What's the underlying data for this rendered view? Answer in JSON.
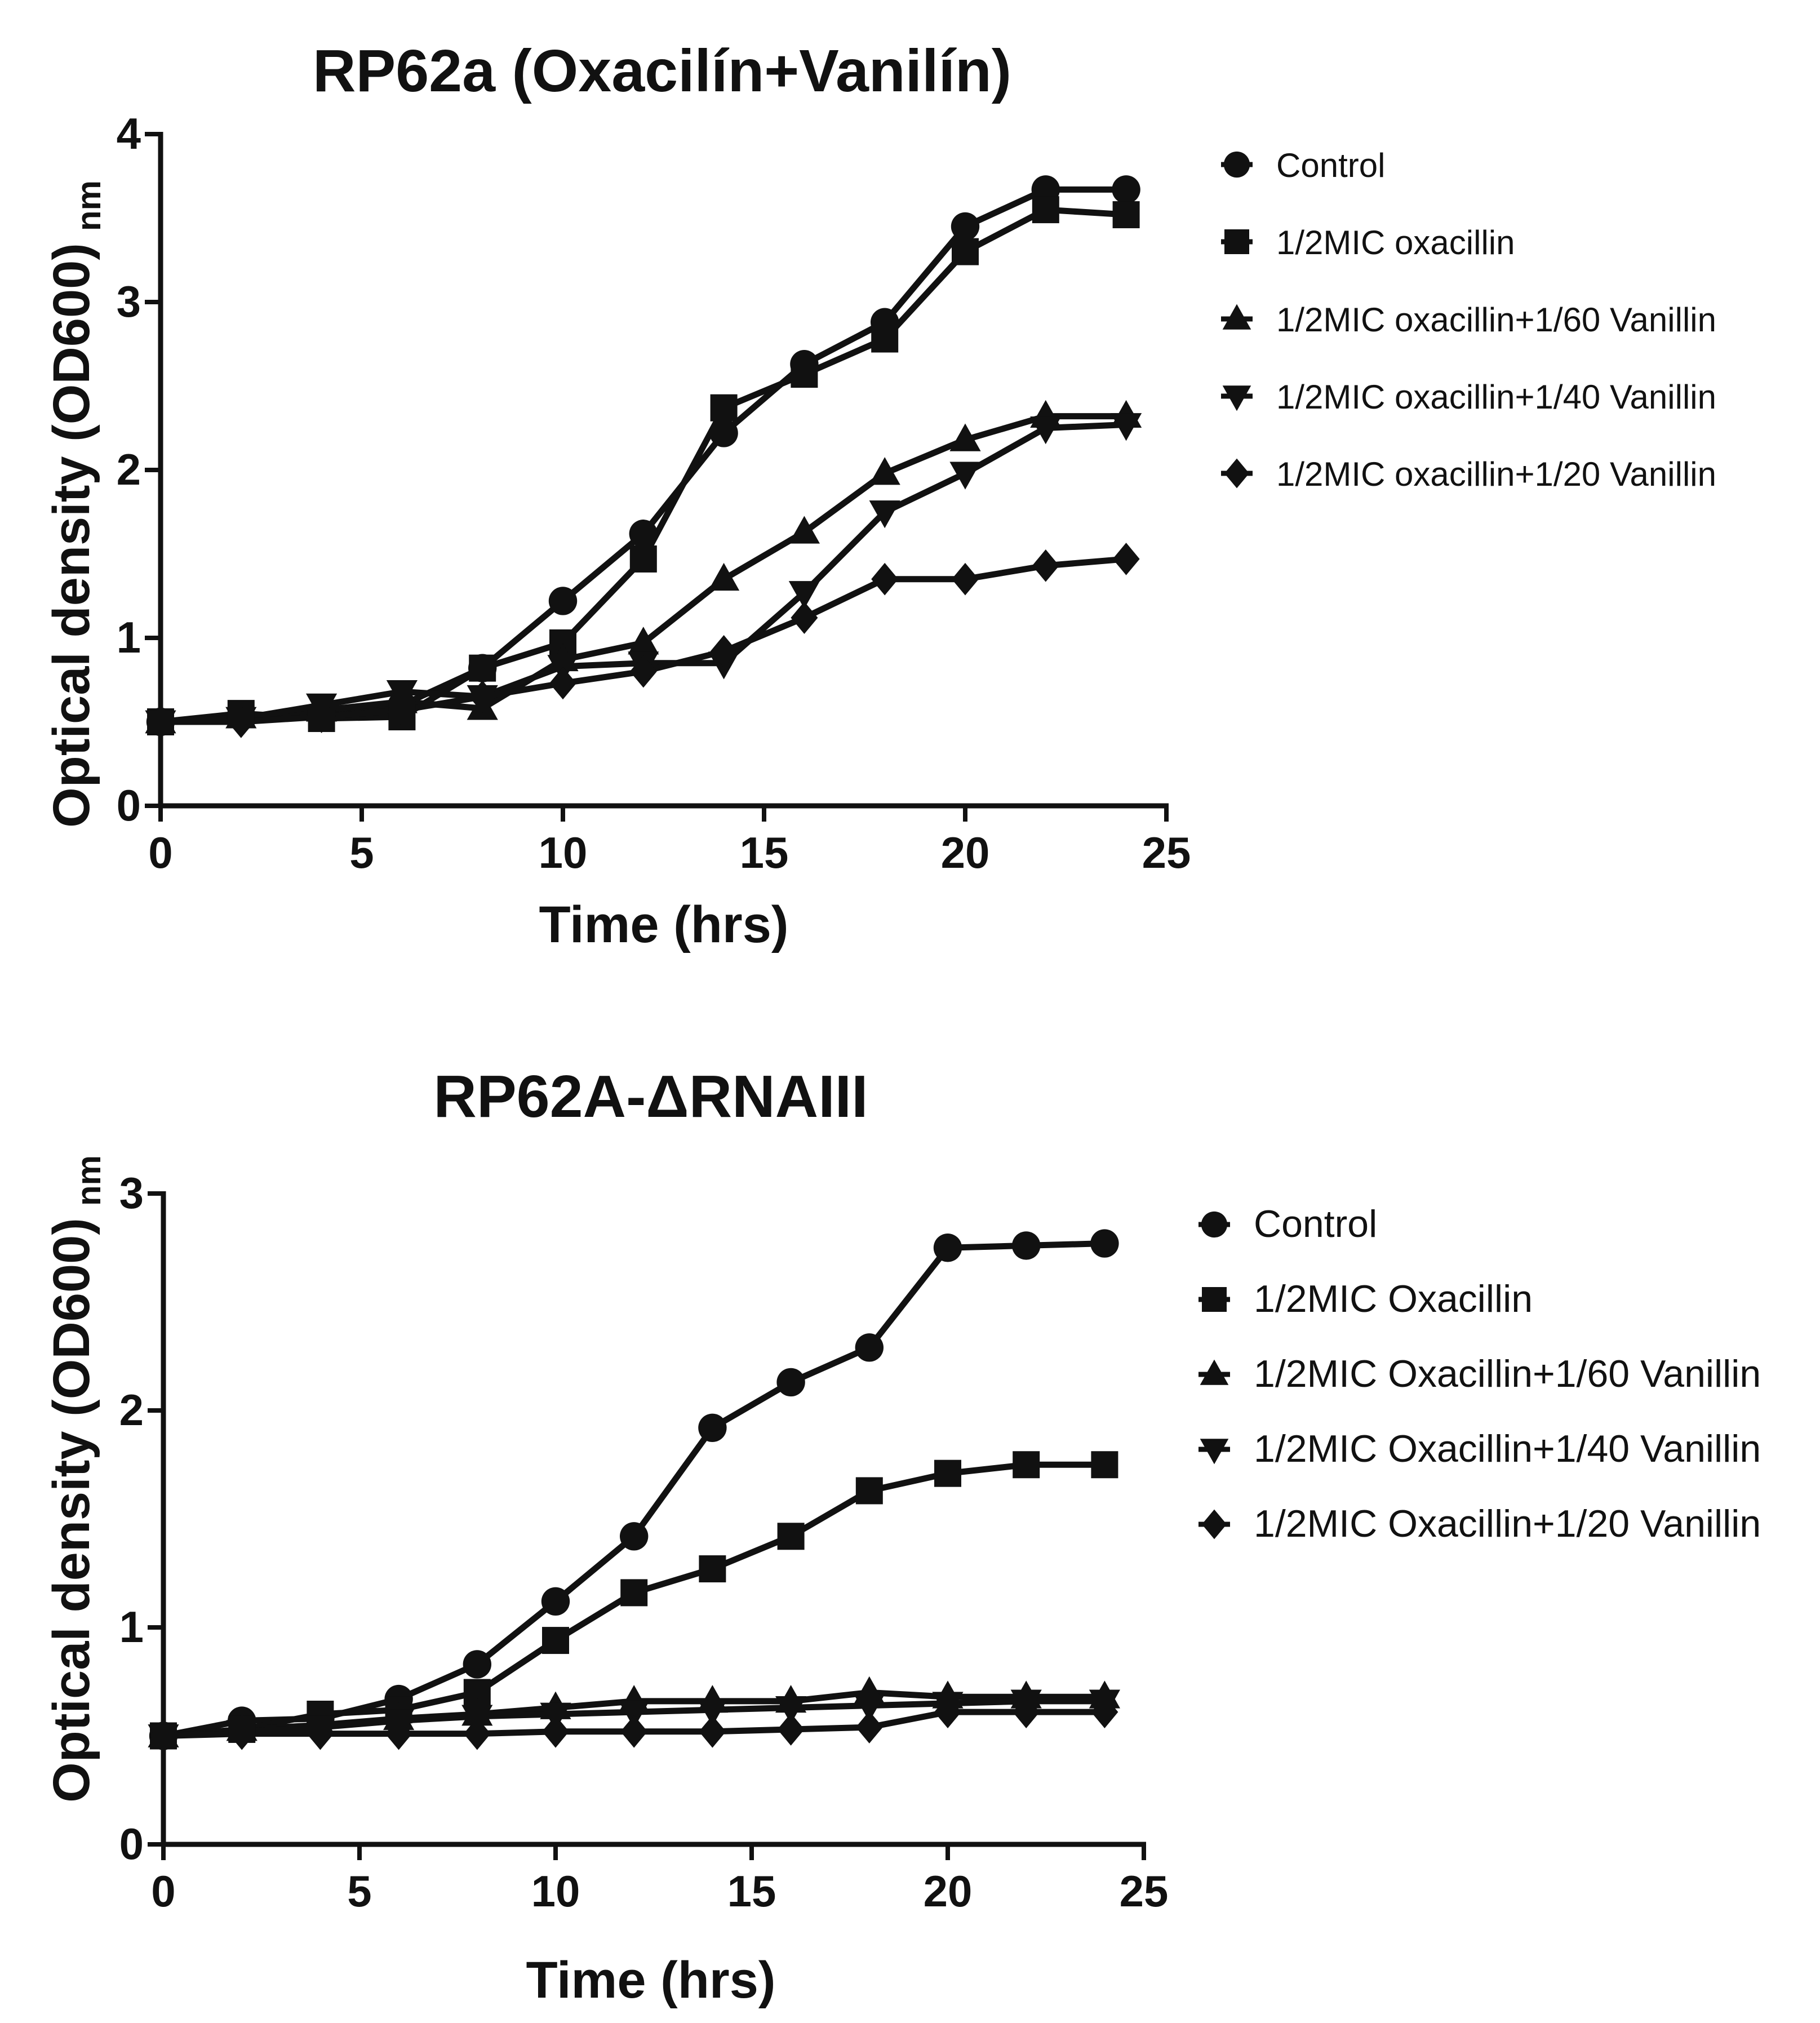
{
  "chart_data": [
    {
      "type": "line",
      "title": "RP62a (Oxacilín+Vanilín)",
      "xlabel": "Time (hrs)",
      "ylabel": "Optical density (OD600)",
      "ylabel_sub": "nm",
      "xlim": [
        0,
        25
      ],
      "ylim": [
        0,
        4
      ],
      "xticks": [
        0,
        5,
        10,
        15,
        20,
        25
      ],
      "yticks": [
        0,
        1,
        2,
        3,
        4
      ],
      "grid": false,
      "legend": "right",
      "x": [
        0,
        2,
        4,
        6,
        8,
        10,
        12,
        14,
        16,
        18,
        20,
        22,
        24
      ],
      "series": [
        {
          "name": "Control",
          "marker": "circle",
          "values": [
            0.5,
            0.53,
            0.55,
            0.6,
            0.82,
            1.22,
            1.62,
            2.22,
            2.63,
            2.88,
            3.45,
            3.67,
            3.67
          ]
        },
        {
          "name": "1/2MIC oxacillin",
          "marker": "square",
          "values": [
            0.5,
            0.55,
            0.52,
            0.53,
            0.82,
            0.97,
            1.47,
            2.37,
            2.57,
            2.78,
            3.3,
            3.55,
            3.52
          ]
        },
        {
          "name": "1/2MIC oxacillin+1/60 Vanillin",
          "marker": "triangle-up",
          "values": [
            0.5,
            0.53,
            0.57,
            0.62,
            0.58,
            0.87,
            0.97,
            1.35,
            1.63,
            1.98,
            2.18,
            2.32,
            2.32
          ]
        },
        {
          "name": "1/2MIC oxacillin+1/40 Vanillin",
          "marker": "triangle-down",
          "values": [
            0.5,
            0.52,
            0.6,
            0.68,
            0.65,
            0.83,
            0.85,
            0.85,
            1.27,
            1.75,
            1.98,
            2.25,
            2.27
          ]
        },
        {
          "name": "1/2MIC oxacillin+1/20 Vanillin",
          "marker": "diamond",
          "values": [
            0.5,
            0.5,
            0.53,
            0.57,
            0.65,
            0.73,
            0.8,
            0.92,
            1.12,
            1.35,
            1.35,
            1.43,
            1.47
          ]
        }
      ]
    },
    {
      "type": "line",
      "title": "RP62A-ΔRNAIII",
      "xlabel": "Time (hrs)",
      "ylabel": "Optical density (OD600)",
      "ylabel_sub": "nm",
      "xlim": [
        0,
        25
      ],
      "ylim": [
        0,
        3
      ],
      "xticks": [
        0,
        5,
        10,
        15,
        20,
        25
      ],
      "yticks": [
        0,
        1,
        2,
        3
      ],
      "grid": false,
      "legend": "right",
      "x": [
        0,
        2,
        4,
        6,
        8,
        10,
        12,
        14,
        16,
        18,
        20,
        22,
        24
      ],
      "series": [
        {
          "name": "Control",
          "marker": "circle",
          "values": [
            0.5,
            0.57,
            0.58,
            0.67,
            0.83,
            1.12,
            1.42,
            1.92,
            2.13,
            2.29,
            2.75,
            2.76,
            2.77
          ]
        },
        {
          "name": "1/2MIC Oxacillin",
          "marker": "square",
          "values": [
            0.5,
            0.53,
            0.6,
            0.62,
            0.7,
            0.94,
            1.16,
            1.27,
            1.42,
            1.63,
            1.71,
            1.75,
            1.75
          ]
        },
        {
          "name": "1/2MIC Oxacillin+1/60 Vanillin",
          "marker": "triangle-up",
          "values": [
            0.5,
            0.53,
            0.55,
            0.58,
            0.6,
            0.63,
            0.66,
            0.66,
            0.66,
            0.7,
            0.68,
            0.68,
            0.68
          ]
        },
        {
          "name": "1/2MIC Oxacillin+1/40 Vanillin",
          "marker": "triangle-down",
          "values": [
            0.5,
            0.52,
            0.54,
            0.57,
            0.59,
            0.6,
            0.61,
            0.62,
            0.63,
            0.64,
            0.65,
            0.66,
            0.66
          ]
        },
        {
          "name": "1/2MIC Oxacillin+1/20 Vanillin",
          "marker": "diamond",
          "values": [
            0.5,
            0.51,
            0.51,
            0.51,
            0.51,
            0.52,
            0.52,
            0.52,
            0.53,
            0.54,
            0.61,
            0.61,
            0.61
          ]
        }
      ]
    }
  ]
}
